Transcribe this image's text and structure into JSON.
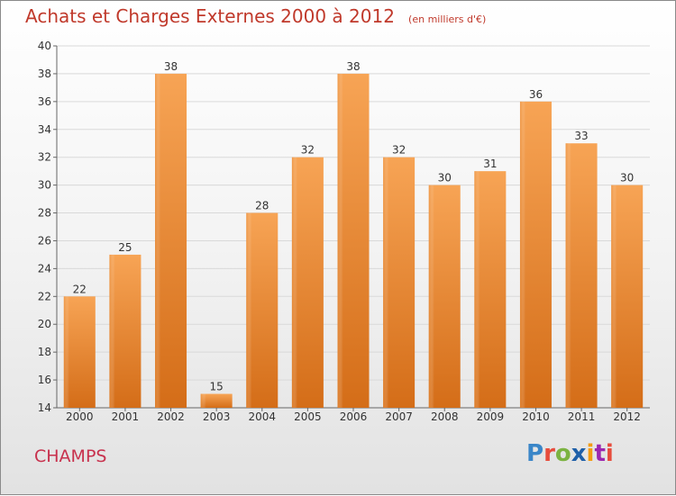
{
  "chart_data": {
    "type": "bar",
    "title": "Achats et Charges Externes 2000 à 2012",
    "subtitle": "(en milliers d'€)",
    "categories": [
      "2000",
      "2001",
      "2002",
      "2003",
      "2004",
      "2005",
      "2006",
      "2007",
      "2008",
      "2009",
      "2010",
      "2011",
      "2012"
    ],
    "values": [
      22,
      25,
      38,
      15,
      28,
      32,
      38,
      32,
      30,
      31,
      36,
      33,
      30
    ],
    "ylim": [
      14,
      40
    ],
    "yticks": [
      14,
      16,
      18,
      20,
      22,
      24,
      26,
      28,
      30,
      32,
      34,
      36,
      38,
      40
    ],
    "grid": true,
    "bar_color": "#f0923a"
  },
  "commune": "CHAMPS",
  "logo": "Proxiti"
}
